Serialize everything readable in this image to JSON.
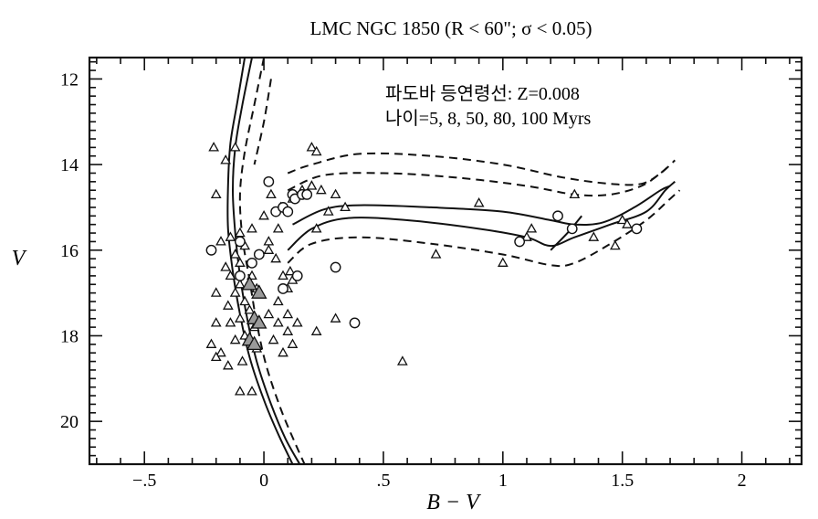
{
  "chart_data": {
    "type": "scatter",
    "title": "LMC  NGC 1850 (R < 60\"; σ < 0.05)",
    "xlabel": "B − V",
    "ylabel": "V",
    "xlim": [
      -0.73,
      2.25
    ],
    "ylim": [
      21.0,
      11.5
    ],
    "y_inverted": true,
    "grid": false,
    "legend": "none",
    "x_ticks": [
      {
        "value": -0.5,
        "label": "−.5"
      },
      {
        "value": 0,
        "label": "0"
      },
      {
        "value": 0.5,
        "label": ".5"
      },
      {
        "value": 1,
        "label": "1"
      },
      {
        "value": 1.5,
        "label": "1.5"
      },
      {
        "value": 2,
        "label": "2"
      }
    ],
    "y_ticks": [
      {
        "value": 12,
        "label": "12"
      },
      {
        "value": 14,
        "label": "14"
      },
      {
        "value": 16,
        "label": "16"
      },
      {
        "value": 18,
        "label": "18"
      },
      {
        "value": 20,
        "label": "20"
      }
    ],
    "annotations": {
      "line1": "파도바 등연령선: Z=0.008",
      "line2": "나이=5, 8, 50, 80, 100 Myrs"
    },
    "series": [
      {
        "marker": "triangle",
        "points": [
          [
            -0.21,
            13.6
          ],
          [
            -0.16,
            13.9
          ],
          [
            -0.12,
            13.6
          ],
          [
            -0.2,
            14.7
          ],
          [
            -0.18,
            15.8
          ],
          [
            -0.14,
            15.7
          ],
          [
            -0.1,
            15.6
          ],
          [
            -0.08,
            15.9
          ],
          [
            -0.05,
            15.5
          ],
          [
            -0.12,
            16.1
          ],
          [
            -0.1,
            16.3
          ],
          [
            -0.16,
            16.4
          ],
          [
            -0.14,
            16.6
          ],
          [
            -0.1,
            16.8
          ],
          [
            -0.05,
            16.6
          ],
          [
            -0.03,
            16.9
          ],
          [
            -0.12,
            17.0
          ],
          [
            -0.08,
            17.2
          ],
          [
            -0.15,
            17.3
          ],
          [
            -0.2,
            17.0
          ],
          [
            -0.06,
            17.4
          ],
          [
            -0.1,
            17.6
          ],
          [
            -0.14,
            17.7
          ],
          [
            -0.2,
            17.7
          ],
          [
            -0.04,
            17.8
          ],
          [
            -0.08,
            18.0
          ],
          [
            -0.12,
            18.1
          ],
          [
            -0.03,
            18.3
          ],
          [
            -0.22,
            18.2
          ],
          [
            -0.18,
            18.4
          ],
          [
            -0.2,
            18.5
          ],
          [
            -0.15,
            18.7
          ],
          [
            -0.09,
            18.6
          ],
          [
            0.02,
            16.0
          ],
          [
            0.05,
            16.2
          ],
          [
            0.08,
            16.6
          ],
          [
            0.11,
            16.5
          ],
          [
            0.1,
            16.9
          ],
          [
            0.06,
            17.2
          ],
          [
            0.02,
            17.5
          ],
          [
            0.06,
            17.7
          ],
          [
            0.1,
            17.9
          ],
          [
            0.12,
            18.2
          ],
          [
            0.08,
            18.4
          ],
          [
            0.04,
            18.1
          ],
          [
            0.1,
            17.5
          ],
          [
            0.14,
            17.7
          ],
          [
            0.12,
            16.7
          ],
          [
            0.03,
            14.7
          ],
          [
            0.07,
            15.0
          ],
          [
            0.0,
            15.2
          ],
          [
            0.06,
            15.5
          ],
          [
            0.02,
            15.8
          ],
          [
            0.12,
            14.8
          ],
          [
            0.16,
            14.6
          ],
          [
            0.2,
            14.5
          ],
          [
            0.24,
            14.6
          ],
          [
            0.3,
            14.7
          ],
          [
            0.34,
            15.0
          ],
          [
            0.2,
            13.6
          ],
          [
            0.22,
            13.7
          ],
          [
            0.3,
            17.6
          ],
          [
            0.22,
            17.9
          ],
          [
            0.58,
            18.6
          ],
          [
            0.72,
            16.1
          ],
          [
            0.9,
            14.9
          ],
          [
            1.0,
            16.3
          ],
          [
            1.1,
            15.7
          ],
          [
            1.12,
            15.5
          ],
          [
            1.3,
            14.7
          ],
          [
            1.38,
            15.7
          ],
          [
            1.5,
            15.3
          ],
          [
            1.52,
            15.4
          ],
          [
            1.47,
            15.9
          ],
          [
            -0.1,
            19.3
          ],
          [
            -0.05,
            19.3
          ],
          [
            0.27,
            15.1
          ],
          [
            0.22,
            15.5
          ]
        ]
      },
      {
        "marker": "circle",
        "points": [
          [
            -0.22,
            16.0
          ],
          [
            -0.1,
            15.8
          ],
          [
            -0.05,
            16.3
          ],
          [
            -0.1,
            16.6
          ],
          [
            -0.02,
            16.1
          ],
          [
            0.02,
            14.4
          ],
          [
            0.05,
            15.1
          ],
          [
            0.08,
            15.0
          ],
          [
            0.1,
            15.1
          ],
          [
            0.12,
            14.7
          ],
          [
            0.13,
            14.8
          ],
          [
            0.16,
            14.7
          ],
          [
            0.18,
            14.7
          ],
          [
            0.14,
            16.6
          ],
          [
            0.08,
            16.9
          ],
          [
            0.3,
            16.4
          ],
          [
            0.38,
            17.7
          ],
          [
            1.07,
            15.8
          ],
          [
            1.23,
            15.2
          ],
          [
            1.29,
            15.5
          ],
          [
            1.56,
            15.5
          ]
        ]
      },
      {
        "marker": "filled-triangle",
        "points": [
          [
            -0.06,
            16.8
          ],
          [
            -0.02,
            17.0
          ],
          [
            -0.04,
            17.6
          ],
          [
            -0.02,
            17.7
          ],
          [
            -0.06,
            18.1
          ],
          [
            -0.04,
            18.2
          ]
        ]
      }
    ],
    "isochrones": [
      {
        "style": "solid",
        "points": [
          [
            -0.08,
            11.5
          ],
          [
            -0.11,
            12.5
          ],
          [
            -0.14,
            13.5
          ],
          [
            -0.15,
            14.5
          ],
          [
            -0.15,
            15.5
          ],
          [
            -0.13,
            16.5
          ],
          [
            -0.1,
            17.5
          ],
          [
            -0.06,
            18.5
          ],
          [
            0.0,
            19.5
          ],
          [
            0.06,
            20.3
          ],
          [
            0.12,
            21.0
          ]
        ]
      },
      {
        "style": "solid",
        "points": [
          [
            -0.05,
            11.5
          ],
          [
            -0.09,
            12.6
          ],
          [
            -0.12,
            13.6
          ],
          [
            -0.13,
            14.6
          ],
          [
            -0.12,
            15.6
          ],
          [
            -0.1,
            16.6
          ],
          [
            -0.07,
            17.6
          ],
          [
            -0.03,
            18.6
          ],
          [
            0.03,
            19.6
          ],
          [
            0.09,
            20.4
          ],
          [
            0.15,
            21.0
          ]
        ]
      },
      {
        "style": "dashed",
        "points": [
          [
            0.0,
            11.5
          ],
          [
            -0.04,
            12.6
          ],
          [
            -0.08,
            13.7
          ],
          [
            -0.1,
            14.7
          ],
          [
            -0.09,
            15.7
          ],
          [
            -0.06,
            16.7
          ],
          [
            -0.03,
            17.7
          ],
          [
            0.01,
            18.7
          ],
          [
            0.07,
            19.7
          ],
          [
            0.13,
            20.5
          ],
          [
            0.17,
            21.0
          ]
        ]
      },
      {
        "style": "dashed",
        "points": [
          [
            0.03,
            12.0
          ],
          [
            0.0,
            13.0
          ],
          [
            -0.04,
            14.0
          ]
        ]
      },
      {
        "style": "solid",
        "points": [
          [
            0.1,
            16.0
          ],
          [
            0.2,
            15.5
          ],
          [
            0.35,
            15.25
          ],
          [
            0.6,
            15.3
          ],
          [
            0.9,
            15.5
          ],
          [
            1.1,
            15.7
          ],
          [
            1.2,
            15.9
          ],
          [
            1.3,
            15.7
          ],
          [
            1.45,
            15.4
          ],
          [
            1.6,
            15.1
          ],
          [
            1.68,
            14.6
          ],
          [
            1.72,
            14.4
          ]
        ]
      },
      {
        "style": "solid",
        "points": [
          [
            0.12,
            15.4
          ],
          [
            0.25,
            15.05
          ],
          [
            0.4,
            14.95
          ],
          [
            0.7,
            15.0
          ],
          [
            1.0,
            15.1
          ],
          [
            1.2,
            15.3
          ],
          [
            1.3,
            15.4
          ],
          [
            1.42,
            15.35
          ],
          [
            1.55,
            15.0
          ],
          [
            1.66,
            14.6
          ],
          [
            1.7,
            14.5
          ]
        ]
      },
      {
        "style": "dashed",
        "points": [
          [
            0.1,
            16.3
          ],
          [
            0.2,
            15.85
          ],
          [
            0.4,
            15.7
          ],
          [
            0.7,
            15.85
          ],
          [
            1.0,
            16.1
          ],
          [
            1.2,
            16.35
          ],
          [
            1.3,
            16.3
          ],
          [
            1.45,
            15.85
          ],
          [
            1.6,
            15.3
          ],
          [
            1.7,
            14.8
          ],
          [
            1.74,
            14.6
          ]
        ]
      },
      {
        "style": "dashed",
        "points": [
          [
            0.1,
            14.6
          ],
          [
            0.25,
            14.25
          ],
          [
            0.5,
            14.2
          ],
          [
            0.8,
            14.3
          ],
          [
            1.1,
            14.5
          ],
          [
            1.3,
            14.7
          ],
          [
            1.45,
            14.7
          ],
          [
            1.58,
            14.5
          ],
          [
            1.66,
            14.2
          ],
          [
            1.7,
            14.0
          ]
        ]
      },
      {
        "style": "dashed",
        "points": [
          [
            0.1,
            14.2
          ],
          [
            0.2,
            14.0
          ],
          [
            0.4,
            13.75
          ],
          [
            0.7,
            13.8
          ],
          [
            1.0,
            14.0
          ],
          [
            1.25,
            14.3
          ],
          [
            1.45,
            14.45
          ],
          [
            1.58,
            14.45
          ],
          [
            1.66,
            14.2
          ],
          [
            1.72,
            13.9
          ]
        ]
      },
      {
        "style": "solid",
        "points": [
          [
            1.2,
            16.0
          ],
          [
            1.27,
            15.6
          ],
          [
            1.33,
            15.2
          ]
        ]
      }
    ]
  }
}
